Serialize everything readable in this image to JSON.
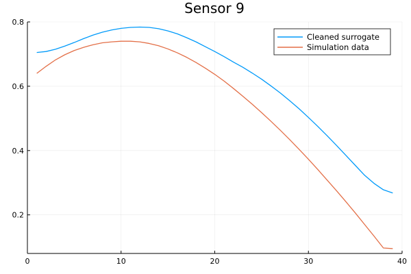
{
  "chart_data": {
    "type": "line",
    "title": "Sensor 9",
    "xlabel": "",
    "ylabel": "",
    "xlim": [
      0,
      40
    ],
    "ylim": [
      0.08,
      0.8
    ],
    "xticks": [
      0,
      10,
      20,
      30,
      40
    ],
    "yticks": [
      0.2,
      0.4,
      0.6,
      0.8
    ],
    "grid": true,
    "legend_position": "top-right",
    "series": [
      {
        "name": "Cleaned surrogate",
        "color": "#009AFA",
        "x": [
          1,
          2,
          3,
          4,
          5,
          6,
          7,
          8,
          9,
          10,
          11,
          12,
          13,
          14,
          15,
          16,
          17,
          18,
          19,
          20,
          21,
          22,
          23,
          24,
          25,
          26,
          27,
          28,
          29,
          30,
          31,
          32,
          33,
          34,
          35,
          36,
          37,
          38,
          39
        ],
        "y": [
          0.705,
          0.708,
          0.715,
          0.725,
          0.736,
          0.748,
          0.759,
          0.768,
          0.775,
          0.78,
          0.783,
          0.784,
          0.783,
          0.779,
          0.772,
          0.763,
          0.751,
          0.738,
          0.723,
          0.708,
          0.692,
          0.675,
          0.659,
          0.641,
          0.622,
          0.601,
          0.579,
          0.555,
          0.53,
          0.503,
          0.475,
          0.446,
          0.416,
          0.385,
          0.354,
          0.323,
          0.298,
          0.278,
          0.268
        ]
      },
      {
        "name": "Simulation data",
        "color": "#E36F47",
        "x": [
          1,
          2,
          3,
          4,
          5,
          6,
          7,
          8,
          9,
          10,
          11,
          12,
          13,
          14,
          15,
          16,
          17,
          18,
          19,
          20,
          21,
          22,
          23,
          24,
          25,
          26,
          27,
          28,
          29,
          30,
          31,
          32,
          33,
          34,
          35,
          36,
          37,
          38,
          39
        ],
        "y": [
          0.64,
          0.662,
          0.682,
          0.698,
          0.711,
          0.721,
          0.729,
          0.735,
          0.738,
          0.74,
          0.74,
          0.738,
          0.733,
          0.726,
          0.716,
          0.704,
          0.69,
          0.674,
          0.656,
          0.637,
          0.616,
          0.593,
          0.569,
          0.544,
          0.518,
          0.491,
          0.463,
          0.434,
          0.404,
          0.373,
          0.341,
          0.308,
          0.275,
          0.241,
          0.206,
          0.17,
          0.134,
          0.097,
          0.095
        ]
      }
    ]
  }
}
